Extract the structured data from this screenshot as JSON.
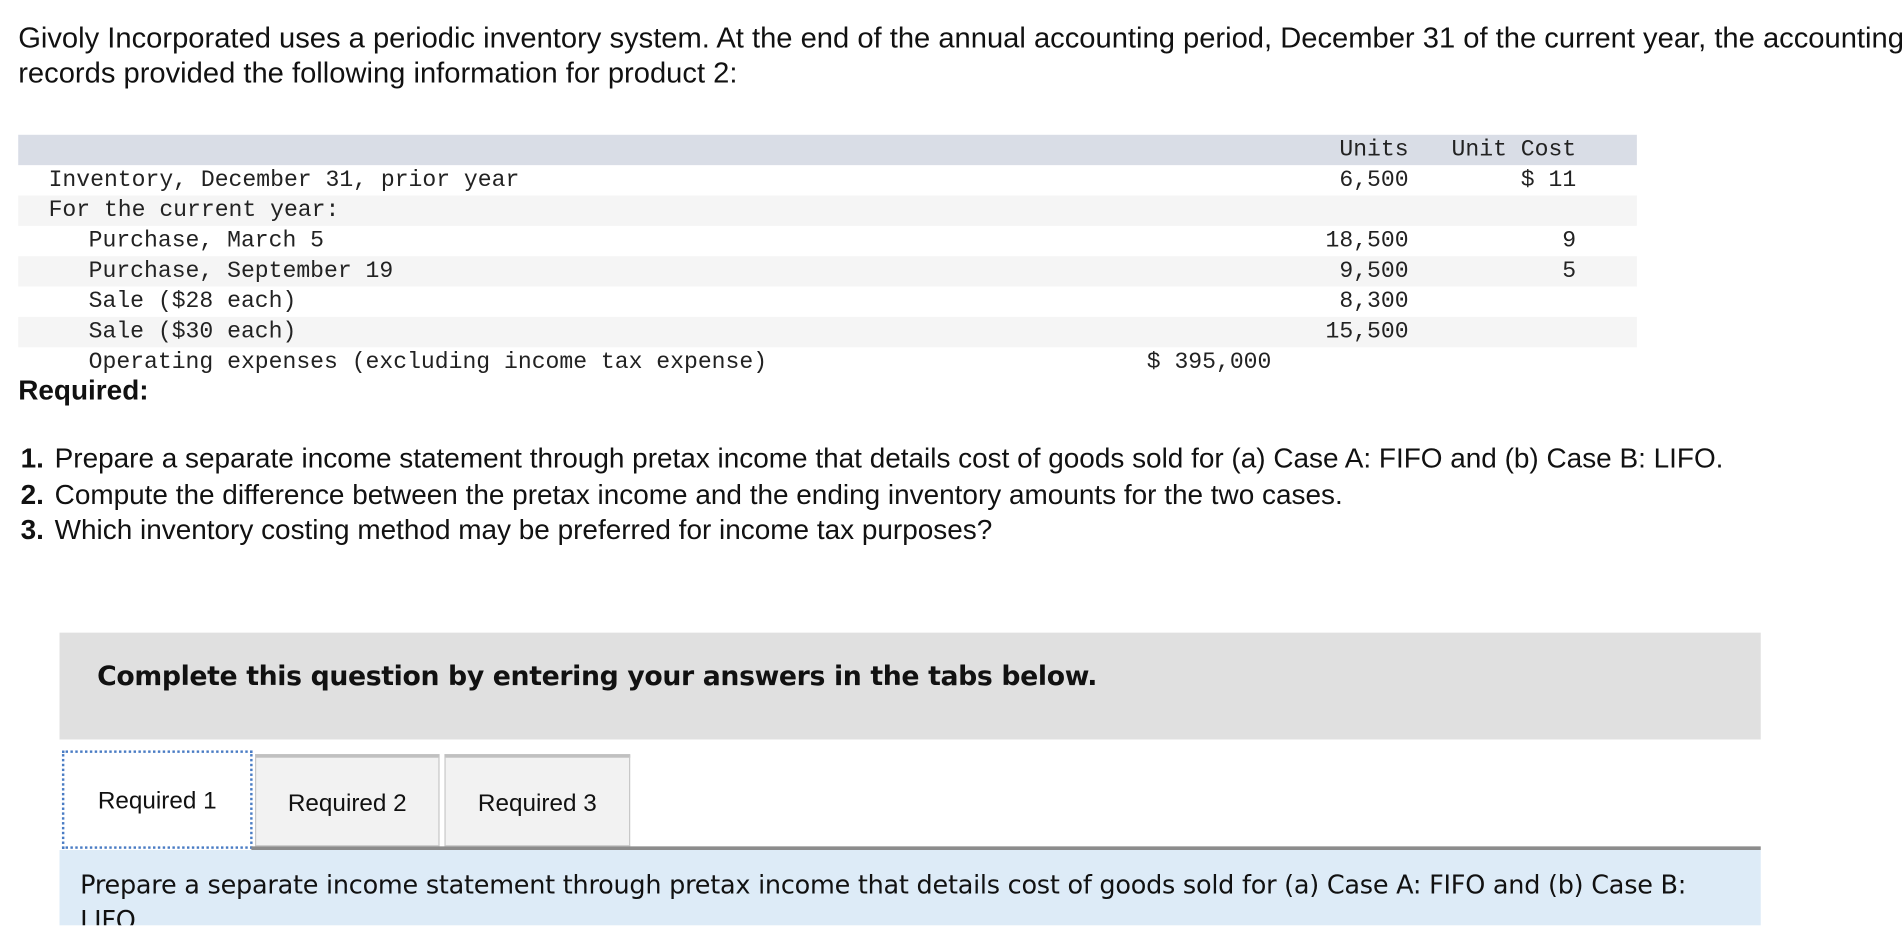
{
  "intro": "Givoly Incorporated uses a periodic inventory system. At the end of the annual accounting period, December 31 of the current year, the accounting records provided the following information for product 2:",
  "table": {
    "headers": {
      "units": "Units",
      "unit_cost": "Unit Cost"
    },
    "rows": [
      {
        "label": "Inventory, December 31, prior year",
        "units": "6,500",
        "unit_cost": "$ 11",
        "amount": ""
      },
      {
        "label": "For the current year:",
        "units": "",
        "unit_cost": "",
        "amount": ""
      },
      {
        "label": "Purchase, March 5",
        "units": "18,500",
        "unit_cost": "9",
        "amount": ""
      },
      {
        "label": "Purchase, September 19",
        "units": "9,500",
        "unit_cost": "5",
        "amount": ""
      },
      {
        "label": "Sale ($28 each)",
        "units": "8,300",
        "unit_cost": "",
        "amount": ""
      },
      {
        "label": "Sale ($30 each)",
        "units": "15,500",
        "unit_cost": "",
        "amount": ""
      },
      {
        "label": "Operating expenses (excluding income tax expense)",
        "units": "",
        "unit_cost": "",
        "amount": "$ 395,000"
      }
    ]
  },
  "required_heading": "Required:",
  "requirements": [
    {
      "num": "1.",
      "text": "Prepare a separate income statement through pretax income that details cost of goods sold for (a) Case A: FIFO and (b) Case B: LIFO."
    },
    {
      "num": "2.",
      "text": "Compute the difference between the pretax income and the ending inventory amounts for the two cases."
    },
    {
      "num": "3.",
      "text": "Which inventory costing method may be preferred for income tax purposes?"
    }
  ],
  "instruction_box": "Complete this question by entering your answers in the tabs below.",
  "tabs": [
    {
      "label": "Required 1",
      "active": true
    },
    {
      "label": "Required 2",
      "active": false
    },
    {
      "label": "Required 3",
      "active": false
    }
  ],
  "panel_text": "Prepare a separate income statement through pretax income that details cost of goods sold for (a) Case A: FIFO and (b) Case B: LIFO."
}
